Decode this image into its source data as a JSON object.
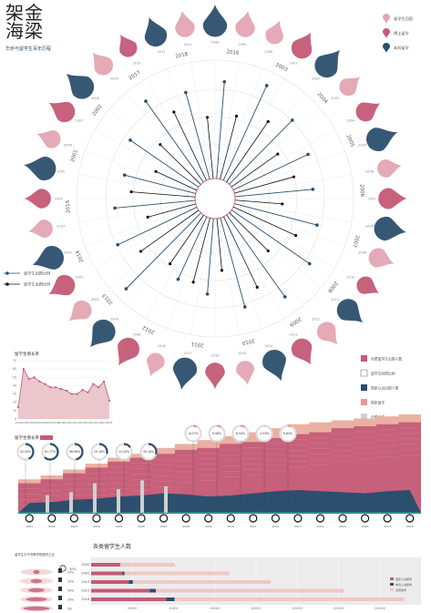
{
  "header": {
    "title_line1": "架金",
    "title_line2": "海梁",
    "subtitle": "华侨与留学生百年历程"
  },
  "colors": {
    "navy": "#2c4f6e",
    "rose": "#c45a76",
    "pink": "#e3a5b3",
    "salmon": "#e89a8a",
    "lightpink": "#f0c8c4",
    "grey": "#cfcfcf",
    "teal": "#2e8a8a"
  },
  "radial": {
    "legend": [
      "留学生回国",
      "博士留学",
      "本科留学"
    ],
    "line_legend": [
      "留学生回国比例",
      "留学生出国比例"
    ],
    "years": [
      "2016",
      "2003",
      "2004",
      "2005",
      "2006",
      "2007",
      "2008",
      "2009",
      "2010",
      "2011",
      "2012",
      "2013",
      "2014",
      "2015",
      "2001",
      "2002",
      "2017",
      "2018"
    ],
    "values_a": [
      0.82,
      0.88,
      0.76,
      0.7,
      0.66,
      0.72,
      0.8,
      0.85,
      0.78,
      0.64,
      0.58,
      0.9,
      0.74,
      0.68,
      0.62,
      0.7,
      0.84,
      0.76
    ],
    "values_b": [
      0.55,
      0.62,
      0.48,
      0.52,
      0.4,
      0.58,
      0.46,
      0.66,
      0.44,
      0.56,
      0.5,
      0.6,
      0.42,
      0.54,
      0.38,
      0.48,
      0.64,
      0.52
    ],
    "drops": [
      {
        "size": 0.9,
        "color": "navy"
      },
      {
        "size": 0.6,
        "color": "pink"
      },
      {
        "size": 0.5,
        "color": "pink"
      },
      {
        "size": 0.7,
        "color": "rose"
      },
      {
        "size": 0.9,
        "color": "navy"
      },
      {
        "size": 0.5,
        "color": "pink"
      },
      {
        "size": 0.6,
        "color": "rose"
      },
      {
        "size": 0.9,
        "color": "navy"
      },
      {
        "size": 0.5,
        "color": "pink"
      },
      {
        "size": 0.7,
        "color": "rose"
      },
      {
        "size": 0.9,
        "color": "navy"
      },
      {
        "size": 0.6,
        "color": "pink"
      },
      {
        "size": 0.5,
        "color": "rose"
      },
      {
        "size": 0.8,
        "color": "navy"
      },
      {
        "size": 0.6,
        "color": "pink"
      },
      {
        "size": 0.7,
        "color": "rose"
      },
      {
        "size": 0.9,
        "color": "navy"
      },
      {
        "size": 0.5,
        "color": "pink"
      },
      {
        "size": 0.6,
        "color": "rose"
      },
      {
        "size": 0.9,
        "color": "navy"
      },
      {
        "size": 0.5,
        "color": "pink"
      },
      {
        "size": 0.8,
        "color": "rose"
      },
      {
        "size": 0.9,
        "color": "navy"
      },
      {
        "size": 0.6,
        "color": "pink"
      },
      {
        "size": 0.7,
        "color": "rose"
      },
      {
        "size": 0.9,
        "color": "navy"
      },
      {
        "size": 0.5,
        "color": "pink"
      },
      {
        "size": 0.6,
        "color": "rose"
      },
      {
        "size": 0.9,
        "color": "navy"
      },
      {
        "size": 0.5,
        "color": "pink"
      },
      {
        "size": 0.7,
        "color": "rose"
      },
      {
        "size": 0.9,
        "color": "navy"
      },
      {
        "size": 0.6,
        "color": "pink"
      },
      {
        "size": 0.5,
        "color": "rose"
      },
      {
        "size": 0.8,
        "color": "navy"
      },
      {
        "size": 0.6,
        "color": "pink"
      }
    ]
  },
  "chart_data": [
    {
      "type": "area",
      "title": "留学生增长率",
      "x": [
        "2001",
        "2002",
        "2003",
        "2004",
        "2005",
        "2006",
        "2007",
        "2008",
        "2009",
        "2010",
        "2011",
        "2012",
        "2013",
        "2014",
        "2015",
        "2016",
        "2017",
        "2018"
      ],
      "values": [
        14,
        60,
        48,
        50,
        45,
        42,
        38,
        38,
        36,
        34,
        30,
        30,
        35,
        32,
        42,
        38,
        45,
        22
      ],
      "ylim": [
        0,
        70
      ],
      "yticks": [
        "0",
        "10",
        "20",
        "30",
        "40",
        "50",
        "60",
        "70"
      ]
    },
    {
      "type": "area",
      "title": "留学生增长率",
      "legend": [
        "自费留学生出国人数",
        "留学生回国比例",
        "国家公派出国人数",
        "国家留学",
        "自费留学"
      ],
      "x": [
        "2001",
        "2002",
        "2003",
        "2004",
        "2005",
        "2006",
        "2007",
        "2008",
        "2009",
        "2010",
        "2011",
        "2012",
        "2013",
        "2014",
        "2015",
        "2016",
        "2017",
        "2018"
      ],
      "navy": [
        0.18,
        0.2,
        0.24,
        0.26,
        0.3,
        0.32,
        0.36,
        0.34,
        0.3,
        0.32,
        0.36,
        0.4,
        0.42,
        0.4,
        0.38,
        0.36,
        0.4,
        0.42
      ],
      "rose": [
        0.3,
        0.34,
        0.4,
        0.46,
        0.52,
        0.56,
        0.6,
        0.64,
        0.66,
        0.7,
        0.72,
        0.76,
        0.8,
        0.82,
        0.86,
        0.88,
        0.9,
        0.92
      ],
      "salmon": [
        0.34,
        0.38,
        0.44,
        0.5,
        0.56,
        0.6,
        0.66,
        0.7,
        0.74,
        0.78,
        0.82,
        0.86,
        0.9,
        0.92,
        0.94,
        0.96,
        0.98,
        1.0
      ],
      "rings": [
        {
          "label": "42.55%",
          "v": 0.43
        },
        {
          "label": "61.77%",
          "v": 0.62
        },
        {
          "label": "46.56%",
          "v": 0.47
        },
        {
          "label": "29.18%",
          "v": 0.29
        },
        {
          "label": "15.20%",
          "v": 0.15
        },
        {
          "label": "30.18%",
          "v": 0.3
        },
        {
          "label": "-8.07%",
          "v": 0.08
        },
        {
          "label": "9.08%",
          "v": 0.09
        },
        {
          "label": "8.50%",
          "v": 0.09
        },
        {
          "label": "-0.59%",
          "v": 0.01
        },
        {
          "label": "6.64%",
          "v": 0.07
        }
      ]
    },
    {
      "type": "bar",
      "title": "各类留学生人数",
      "categories": [
        "2000",
        "2005",
        "2010",
        "2015",
        "2018"
      ],
      "series": [
        {
          "name": "国家公派留学",
          "values": [
            7000,
            7500,
            9000,
            14000,
            18000
          ]
        },
        {
          "name": "单位公派留学",
          "values": [
            0,
            500,
            1000,
            1500,
            2000
          ]
        },
        {
          "name": "自费留学",
          "values": [
            13000,
            25000,
            33000,
            45000,
            55000
          ]
        }
      ],
      "xticks": [
        "20000",
        "40000",
        "60000",
        "80000",
        "100000",
        "120000",
        "140000"
      ],
      "xlim": [
        0,
        150000
      ]
    }
  ],
  "bottom_left": {
    "title": "留学生中不同教育程度的占比",
    "percent_label": "30%",
    "items": [
      {
        "label": "20%"
      },
      {
        "label": "20%"
      },
      {
        "label": "50%"
      },
      {
        "label": "20%"
      },
      {
        "label": "5%"
      }
    ]
  }
}
